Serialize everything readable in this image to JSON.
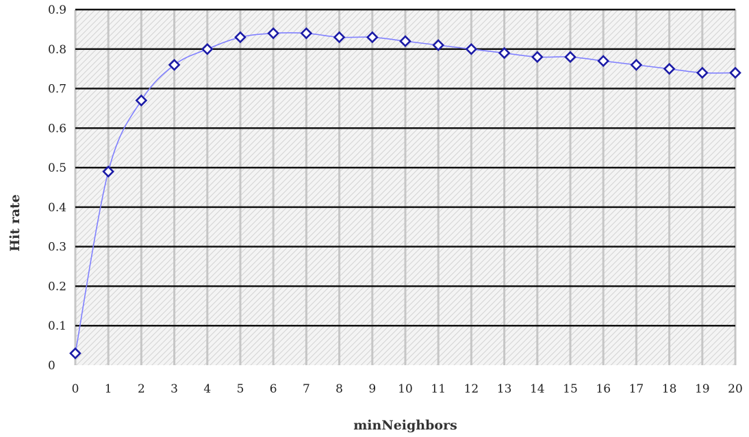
{
  "chart_data": {
    "type": "line",
    "title": "",
    "xlabel": "minNeighbors",
    "ylabel": "Hit rate",
    "x": [
      0,
      1,
      2,
      3,
      4,
      5,
      6,
      7,
      8,
      9,
      10,
      11,
      12,
      13,
      14,
      15,
      16,
      17,
      18,
      19,
      20
    ],
    "series": [
      {
        "values": [
          0.03,
          0.49,
          0.67,
          0.76,
          0.8,
          0.83,
          0.84,
          0.84,
          0.83,
          0.83,
          0.82,
          0.81,
          0.8,
          0.79,
          0.78,
          0.78,
          0.77,
          0.76,
          0.75,
          0.74,
          0.74
        ]
      }
    ],
    "xlim": [
      0,
      20
    ],
    "ylim": [
      0,
      0.9
    ],
    "x_ticks": [
      "0",
      "1",
      "2",
      "3",
      "4",
      "5",
      "6",
      "7",
      "8",
      "9",
      "10",
      "11",
      "12",
      "13",
      "14",
      "15",
      "16",
      "17",
      "18",
      "19",
      "20"
    ],
    "y_ticks": [
      "0",
      "0.1",
      "0.2",
      "0.3",
      "0.4",
      "0.5",
      "0.6",
      "0.7",
      "0.8",
      "0.9"
    ],
    "grid": true,
    "marker": "diamond-open",
    "colors": {
      "line": "#8080ff",
      "marker": "#1a1aa6",
      "gridline": "#111111",
      "hatch": "#d2d2d2",
      "plot_bg": "#f4f4f4"
    }
  }
}
